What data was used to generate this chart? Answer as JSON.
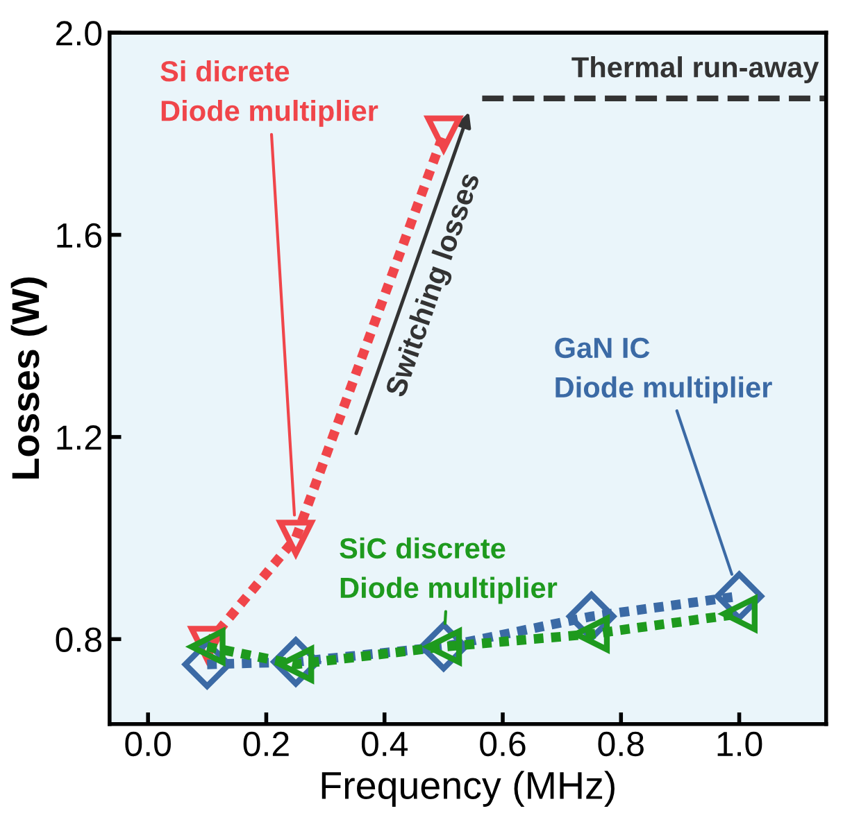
{
  "chart_data": {
    "type": "line",
    "xlabel": "Frequency (MHz)",
    "ylabel": "Losses (W)",
    "xlim": [
      -0.065,
      1.147
    ],
    "xticks": [
      {
        "value": 0,
        "label": "0.0"
      },
      0.2,
      0.4,
      0.6,
      0.8,
      {
        "value": 1,
        "label": "1.0"
      }
    ],
    "ylim": [
      0.632,
      2.0
    ],
    "yticks": [
      0.8,
      1.2,
      1.6,
      {
        "value": 2,
        "label": "2.0"
      }
    ],
    "grid": false,
    "line_style": "dotted",
    "series": [
      {
        "name": "Si dicrete\nDiode multiplier",
        "color": "#f0454a",
        "marker": "triangle_down",
        "x": [
          0.1,
          0.25,
          0.5
        ],
        "values": [
          0.79,
          1.0,
          1.8
        ]
      },
      {
        "name": "GaN IC\nDiode multiplier",
        "color": "#3b6aa5",
        "marker": "diamond",
        "x": [
          0.1,
          0.25,
          0.5,
          0.75,
          1.0
        ],
        "values": [
          0.75,
          0.755,
          0.785,
          0.845,
          0.885
        ]
      },
      {
        "name": "SiC discrete\nDiode multiplier",
        "color": "#1e9a1e",
        "marker": "triangle_left",
        "x": [
          0.1,
          0.25,
          0.5,
          0.75,
          1.0
        ],
        "values": [
          0.785,
          0.75,
          0.785,
          0.81,
          0.85
        ]
      }
    ],
    "ref_lines": [
      {
        "axis": "y",
        "value": 1.87,
        "label": "Thermal run-away",
        "color": "#333333",
        "line_style": "dashed"
      }
    ],
    "annotations": [
      "Switching losses"
    ]
  }
}
